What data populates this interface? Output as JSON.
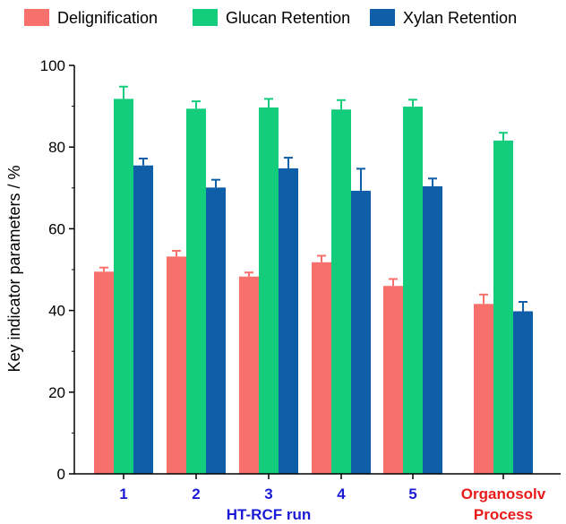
{
  "chart_data": {
    "type": "bar",
    "ylabel": "Key indicator parameters / %",
    "ylim": [
      0,
      100
    ],
    "yticks": [
      0,
      20,
      40,
      60,
      80,
      100
    ],
    "categories": [
      "1",
      "2",
      "3",
      "4",
      "5",
      "Organosolv"
    ],
    "category_colors": [
      "#1b1bd6",
      "#1b1bd6",
      "#1b1bd6",
      "#1b1bd6",
      "#1b1bd6",
      "#e81b1b"
    ],
    "group_labels": [
      {
        "text": "HT-RCF run",
        "color": "#1b1bd6"
      },
      {
        "text": "Process",
        "color": "#e81b1b"
      }
    ],
    "legend_position": "top",
    "series": [
      {
        "name": "Delignification",
        "color": "#f8706b",
        "values": [
          49.5,
          53.2,
          48.3,
          51.8,
          46.0,
          41.6
        ],
        "errors": [
          1.0,
          1.4,
          1.0,
          1.6,
          1.7,
          2.3
        ]
      },
      {
        "name": "Glucan Retention",
        "color": "#13cc7c",
        "values": [
          91.8,
          89.4,
          89.7,
          89.2,
          89.9,
          81.6
        ],
        "errors": [
          3.0,
          1.8,
          2.1,
          2.3,
          1.7,
          1.9
        ]
      },
      {
        "name": "Xylan Retention",
        "color": "#0f5ea8",
        "values": [
          75.5,
          70.1,
          74.8,
          69.3,
          70.4,
          39.8
        ],
        "errors": [
          1.7,
          1.9,
          2.6,
          5.4,
          1.9,
          2.3
        ]
      }
    ]
  }
}
